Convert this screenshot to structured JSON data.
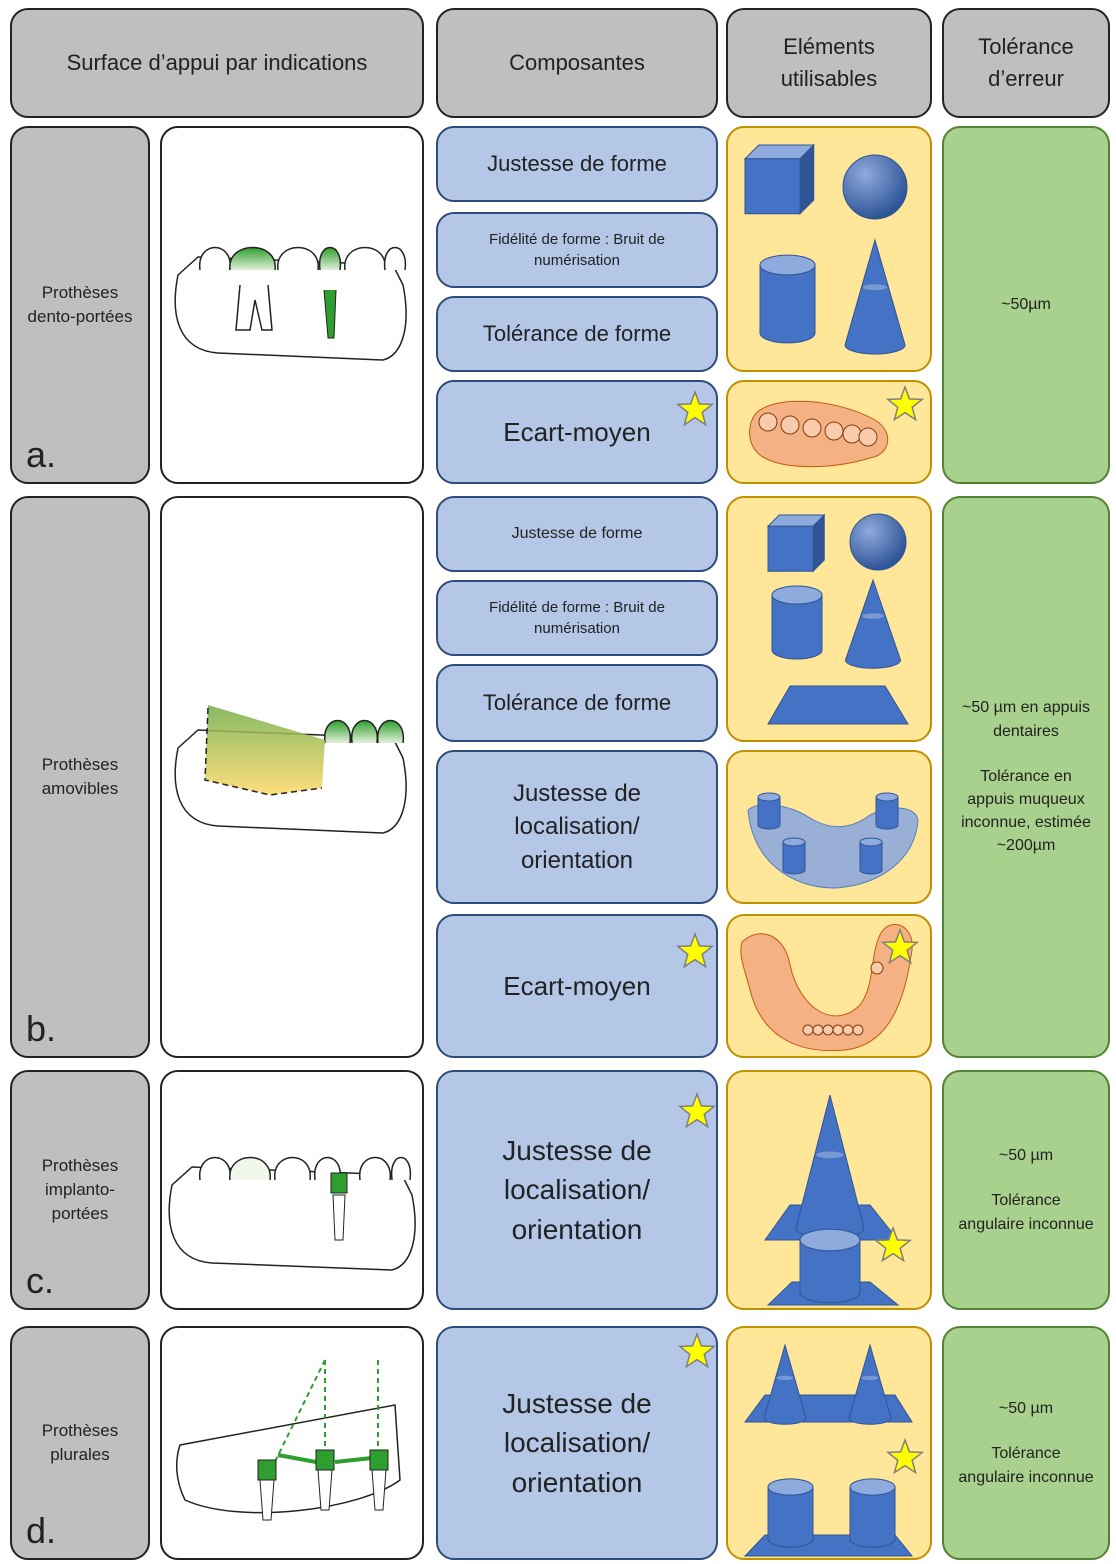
{
  "header": {
    "surface": "Surface d’appui par indications",
    "composantes": "Composantes",
    "elements": "Eléments utilisables",
    "tolerance": "Tolérance d’erreur"
  },
  "rows": [
    {
      "letter": "a.",
      "label": "Prothèses dento-portées",
      "components": [
        "Justesse de forme",
        "Fidélité de forme : Bruit de numérisation",
        "Tolérance de forme",
        "Ecart-moyen"
      ],
      "tolerance": [
        "~50µm"
      ]
    },
    {
      "letter": "b.",
      "label": "Prothèses amovibles",
      "components": [
        "Justesse de forme",
        "Fidélité de forme : Bruit de numérisation",
        "Tolérance de forme",
        "Justesse de localisation/ orientation",
        "Ecart-moyen"
      ],
      "tolerance": [
        "~50 µm en appuis dentaires",
        "Tolérance en appuis muqueux inconnue, estimée ~200µm"
      ]
    },
    {
      "letter": "c.",
      "label": "Prothèses implanto-portées",
      "components": [
        "Justesse de localisation/ orientation"
      ],
      "tolerance": [
        "~50 µm",
        "Tolérance angulaire inconnue"
      ]
    },
    {
      "letter": "d.",
      "label": "Prothèses plurales",
      "components": [
        "Justesse de localisation/ orientation"
      ],
      "tolerance": [
        "~50 µm",
        "Tolérance angulaire inconnue"
      ]
    }
  ]
}
